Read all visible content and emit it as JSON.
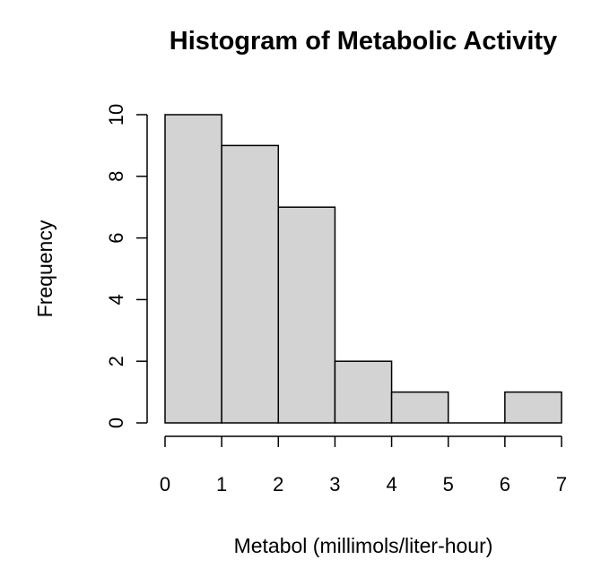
{
  "chart_data": {
    "type": "histogram",
    "title": "Histogram of Metabolic Activity",
    "xlabel": "Metabol (millimols/liter-hour)",
    "ylabel": "Frequency",
    "bins": [
      {
        "start": 0,
        "end": 1,
        "count": 10
      },
      {
        "start": 1,
        "end": 2,
        "count": 9
      },
      {
        "start": 2,
        "end": 3,
        "count": 7
      },
      {
        "start": 3,
        "end": 4,
        "count": 2
      },
      {
        "start": 4,
        "end": 5,
        "count": 1
      },
      {
        "start": 5,
        "end": 6,
        "count": 0
      },
      {
        "start": 6,
        "end": 7,
        "count": 1
      }
    ],
    "x_ticks": [
      "0",
      "1",
      "2",
      "3",
      "4",
      "5",
      "6",
      "7"
    ],
    "y_ticks": [
      "0",
      "2",
      "4",
      "6",
      "8",
      "10"
    ],
    "xlim": [
      0,
      7
    ],
    "ylim": [
      0,
      10
    ],
    "bar_fill": "#d3d3d3",
    "bar_stroke": "#000000",
    "grid": false
  }
}
